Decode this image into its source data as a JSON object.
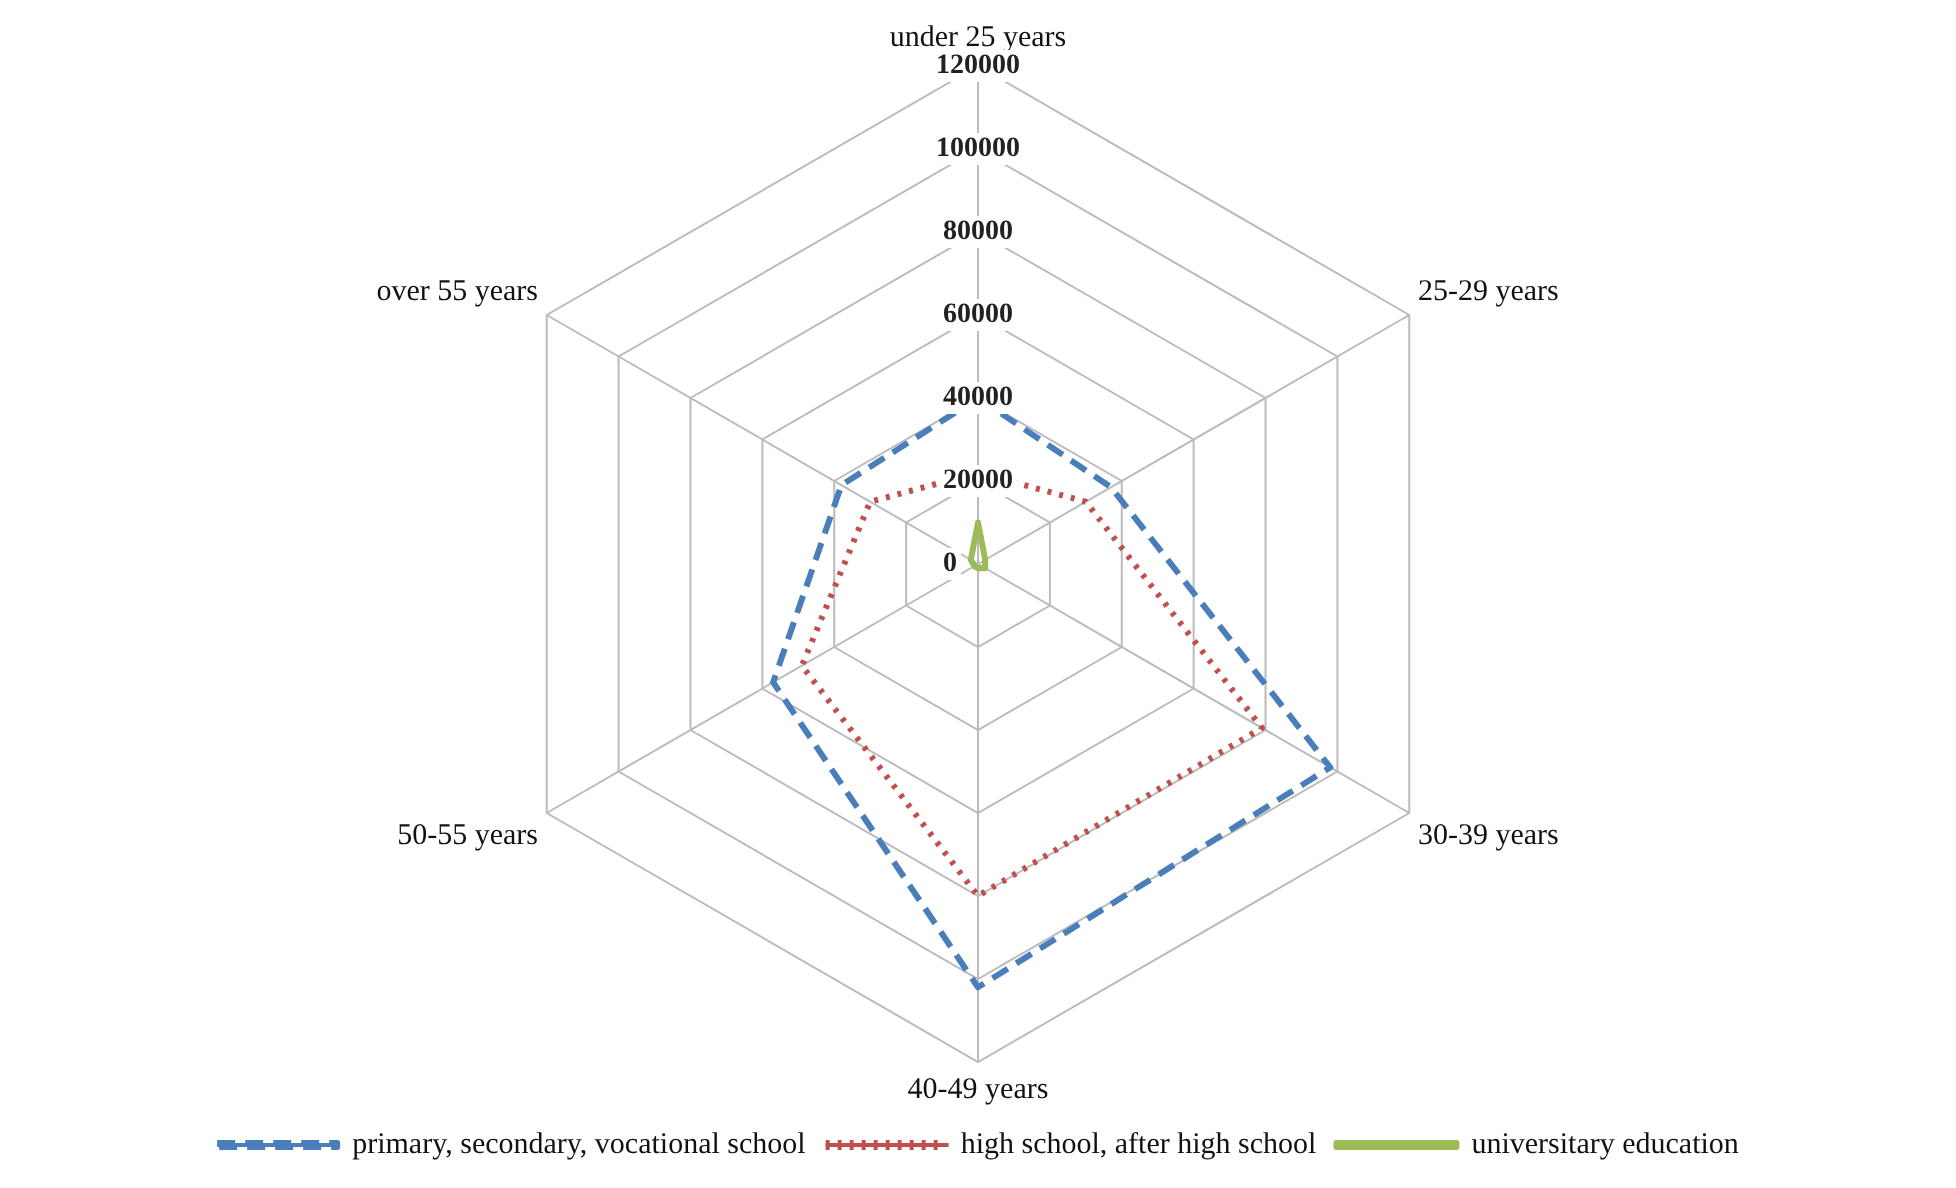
{
  "chart_data": {
    "type": "radar",
    "categories": [
      "under 25 years",
      "25-29 years",
      "30-39 years",
      "40-49 years",
      "50-55 years",
      "over 55 years"
    ],
    "ylim": [
      0,
      120000
    ],
    "yticks": [
      0,
      20000,
      40000,
      60000,
      80000,
      100000,
      120000
    ],
    "grid": true,
    "legend": "bottom",
    "marker": "none",
    "series": [
      {
        "name": "primary, secondary, vocational school",
        "color": "#4a7ebb",
        "line_style": "dashed",
        "values": [
          40000,
          37000,
          98000,
          102000,
          57000,
          38000
        ]
      },
      {
        "name": "high school, after high school",
        "color": "#c0504d",
        "line_style": "dotted",
        "values": [
          22000,
          30000,
          79000,
          80000,
          49000,
          30000
        ]
      },
      {
        "name": "universitary education",
        "color": "#9bbb59",
        "line_style": "solid",
        "values": [
          10000,
          2000,
          2000,
          1000,
          1000,
          2000
        ]
      }
    ]
  }
}
